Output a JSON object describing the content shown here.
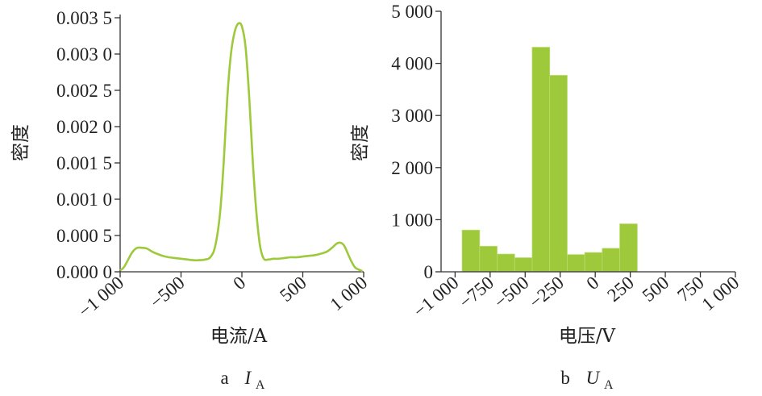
{
  "chart_data": [
    {
      "type": "line",
      "ylabel": "密度",
      "xlabel": "电流/A",
      "caption": {
        "prefix": "a",
        "symbol": "I",
        "subscript": "A"
      },
      "xlim": [
        -1000,
        1000
      ],
      "ylim": [
        0,
        0.0035
      ],
      "x_tick_values": [
        -1000,
        -500,
        0,
        500,
        1000
      ],
      "x_tick_labels": [
        "−1 000",
        "−500",
        "0",
        "500",
        "1 000"
      ],
      "y_tick_values": [
        0,
        0.0005,
        0.001,
        0.0015,
        0.002,
        0.0025,
        0.003,
        0.0035
      ],
      "y_tick_labels": [
        "0.000 0",
        "0.000 5",
        "0.001 0",
        "0.001 5",
        "0.002 0",
        "0.002 5",
        "0.003 0",
        "0.003 5"
      ],
      "series": [
        {
          "color": "#9dc93b",
          "x": [
            -1000,
            -970,
            -940,
            -900,
            -860,
            -820,
            -780,
            -740,
            -700,
            -650,
            -600,
            -550,
            -500,
            -450,
            -400,
            -350,
            -300,
            -260,
            -220,
            -180,
            -150,
            -120,
            -90,
            -60,
            -30,
            0,
            30,
            60,
            90,
            120,
            150,
            180,
            220,
            260,
            300,
            350,
            400,
            450,
            500,
            550,
            600,
            650,
            700,
            740,
            780,
            810,
            840,
            870,
            900,
            930,
            960,
            990
          ],
          "y": [
            2e-05,
            6e-05,
            0.00015,
            0.00027,
            0.00033,
            0.00033,
            0.00032,
            0.00028,
            0.00025,
            0.00022,
            0.0002,
            0.00019,
            0.00018,
            0.00017,
            0.00016,
            0.00016,
            0.00017,
            0.0002,
            0.00035,
            0.0008,
            0.0015,
            0.0024,
            0.003,
            0.0033,
            0.00342,
            0.00338,
            0.0031,
            0.0024,
            0.0015,
            0.0008,
            0.00035,
            0.00018,
            0.00017,
            0.00018,
            0.00018,
            0.00019,
            0.0002,
            0.0002,
            0.00021,
            0.00022,
            0.00023,
            0.00025,
            0.00028,
            0.00033,
            0.00039,
            0.0004,
            0.00036,
            0.00025,
            0.00014,
            6e-05,
            3e-05,
            1e-05
          ]
        }
      ]
    },
    {
      "type": "bar",
      "ylabel": "密度",
      "xlabel": "电压/V",
      "caption": {
        "prefix": "b",
        "symbol": "U",
        "subscript": "A"
      },
      "xlim": [
        -1100,
        1000
      ],
      "ylim": [
        0,
        5000
      ],
      "x_tick_values": [
        -1000,
        -750,
        -500,
        -250,
        0,
        250,
        500,
        750,
        1000
      ],
      "x_tick_labels": [
        "−1 000",
        "−750",
        "−500",
        "−250",
        "0",
        "250",
        "500",
        "750",
        "1 000"
      ],
      "y_tick_values": [
        0,
        1000,
        2000,
        3000,
        4000,
        5000
      ],
      "y_tick_labels": [
        "0",
        "1 000",
        "2 000",
        "3 000",
        "4 000",
        "5 000"
      ],
      "bar_color": "#9dc93b",
      "bins": [
        {
          "x0": -950,
          "x1": -825,
          "value": 800
        },
        {
          "x0": -825,
          "x1": -700,
          "value": 490
        },
        {
          "x0": -700,
          "x1": -575,
          "value": 340
        },
        {
          "x0": -575,
          "x1": -450,
          "value": 270
        },
        {
          "x0": -450,
          "x1": -325,
          "value": 4310
        },
        {
          "x0": -325,
          "x1": -200,
          "value": 3770
        },
        {
          "x0": -200,
          "x1": -75,
          "value": 330
        },
        {
          "x0": -75,
          "x1": 50,
          "value": 370
        },
        {
          "x0": 50,
          "x1": 175,
          "value": 450
        },
        {
          "x0": 175,
          "x1": 300,
          "value": 920
        }
      ]
    }
  ]
}
